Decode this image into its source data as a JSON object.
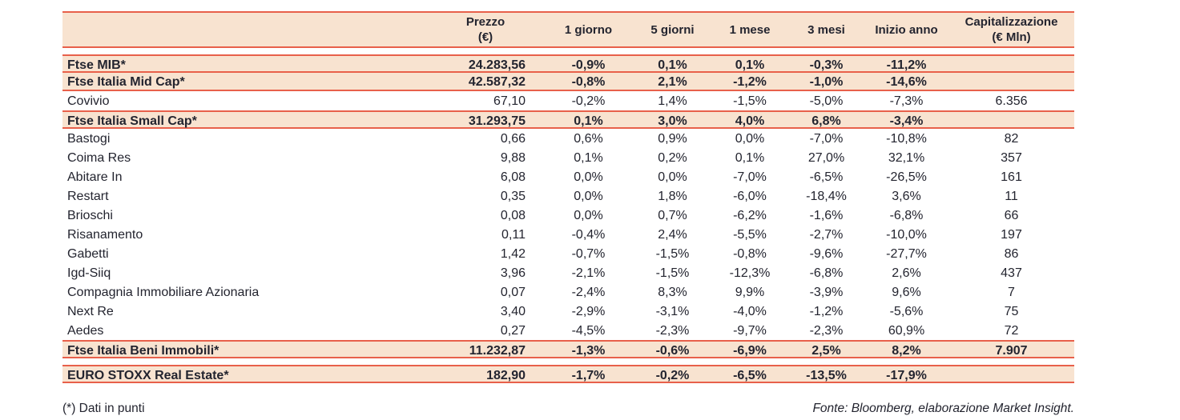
{
  "colors": {
    "accent_red": "#e8604a",
    "highlight_beige": "#f8e3d0",
    "text_dark": "#23242f"
  },
  "table": {
    "columns": [
      {
        "id": "name",
        "label": "",
        "sub": ""
      },
      {
        "id": "prezzo",
        "label": "Prezzo",
        "sub": "(€)"
      },
      {
        "id": "giorno1",
        "label": "1 giorno",
        "sub": ""
      },
      {
        "id": "giorni5",
        "label": "5 giorni",
        "sub": ""
      },
      {
        "id": "mese1",
        "label": "1 mese",
        "sub": ""
      },
      {
        "id": "mesi3",
        "label": "3 mesi",
        "sub": ""
      },
      {
        "id": "inizio-anno",
        "label": "Inizio anno",
        "sub": ""
      },
      {
        "id": "capitalizzazione",
        "label": "Capitalizzazione",
        "sub": "(€ Mln)"
      }
    ],
    "rows": [
      {
        "style": "index",
        "borders": "bt bb",
        "cells": [
          "Ftse MIB*",
          "24.283,56",
          "-0,9%",
          "0,1%",
          "0,1%",
          "-0,3%",
          "-11,2%",
          ""
        ]
      },
      {
        "style": "index",
        "borders": "bb",
        "cells": [
          "Ftse Italia Mid Cap*",
          "42.587,32",
          "-0,8%",
          "2,1%",
          "-1,2%",
          "-1,0%",
          "-14,6%",
          ""
        ]
      },
      {
        "style": "stock",
        "borders": "",
        "cells": [
          "Covivio",
          "67,10",
          "-0,2%",
          "1,4%",
          "-1,5%",
          "-5,0%",
          "-7,3%",
          "6.356"
        ]
      },
      {
        "style": "index",
        "borders": "bt bb",
        "cells": [
          "Ftse Italia Small Cap*",
          "31.293,75",
          "0,1%",
          "3,0%",
          "4,0%",
          "6,8%",
          "-3,4%",
          ""
        ]
      },
      {
        "style": "stock",
        "borders": "",
        "cells": [
          "Bastogi",
          "0,66",
          "0,6%",
          "0,9%",
          "0,0%",
          "-7,0%",
          "-10,8%",
          "82"
        ]
      },
      {
        "style": "stock",
        "borders": "",
        "cells": [
          "Coima Res",
          "9,88",
          "0,1%",
          "0,2%",
          "0,1%",
          "27,0%",
          "32,1%",
          "357"
        ]
      },
      {
        "style": "stock",
        "borders": "",
        "cells": [
          "Abitare In",
          "6,08",
          "0,0%",
          "0,0%",
          "-7,0%",
          "-6,5%",
          "-26,5%",
          "161"
        ]
      },
      {
        "style": "stock",
        "borders": "",
        "cells": [
          "Restart",
          "0,35",
          "0,0%",
          "1,8%",
          "-6,0%",
          "-18,4%",
          "3,6%",
          "11"
        ]
      },
      {
        "style": "stock",
        "borders": "",
        "cells": [
          "Brioschi",
          "0,08",
          "0,0%",
          "0,7%",
          "-6,2%",
          "-1,6%",
          "-6,8%",
          "66"
        ]
      },
      {
        "style": "stock",
        "borders": "",
        "cells": [
          "Risanamento",
          "0,11",
          "-0,4%",
          "2,4%",
          "-5,5%",
          "-2,7%",
          "-10,0%",
          "197"
        ]
      },
      {
        "style": "stock",
        "borders": "",
        "cells": [
          "Gabetti",
          "1,42",
          "-0,7%",
          "-1,5%",
          "-0,8%",
          "-9,6%",
          "-27,7%",
          "86"
        ]
      },
      {
        "style": "stock",
        "borders": "",
        "cells": [
          "Igd-Siiq",
          "3,96",
          "-2,1%",
          "-1,5%",
          "-12,3%",
          "-6,8%",
          "2,6%",
          "437"
        ]
      },
      {
        "style": "stock",
        "borders": "",
        "cells": [
          "Compagnia Immobiliare Azionaria",
          "0,07",
          "-2,4%",
          "8,3%",
          "9,9%",
          "-3,9%",
          "9,6%",
          "7"
        ]
      },
      {
        "style": "stock",
        "borders": "",
        "cells": [
          "Next Re",
          "3,40",
          "-2,9%",
          "-3,1%",
          "-4,0%",
          "-1,2%",
          "-5,6%",
          "75"
        ]
      },
      {
        "style": "stock",
        "borders": "",
        "cells": [
          "Aedes",
          "0,27",
          "-4,5%",
          "-2,3%",
          "-9,7%",
          "-2,3%",
          "60,9%",
          "72"
        ]
      },
      {
        "style": "index",
        "borders": "bt bb",
        "cells": [
          "Ftse Italia Beni Immobili*",
          "11.232,87",
          "-1,3%",
          "-0,6%",
          "-6,9%",
          "2,5%",
          "8,2%",
          "7.907"
        ]
      },
      {
        "style": "index",
        "borders": "bt bb",
        "gap_before": true,
        "cells": [
          "EURO STOXX Real Estate*",
          "182,90",
          "-1,7%",
          "-0,2%",
          "-6,5%",
          "-13,5%",
          "-17,9%",
          ""
        ]
      }
    ]
  },
  "footer": {
    "note": "(*) Dati in punti",
    "source": "Fonte: Bloomberg, elaborazione Market Insight."
  }
}
